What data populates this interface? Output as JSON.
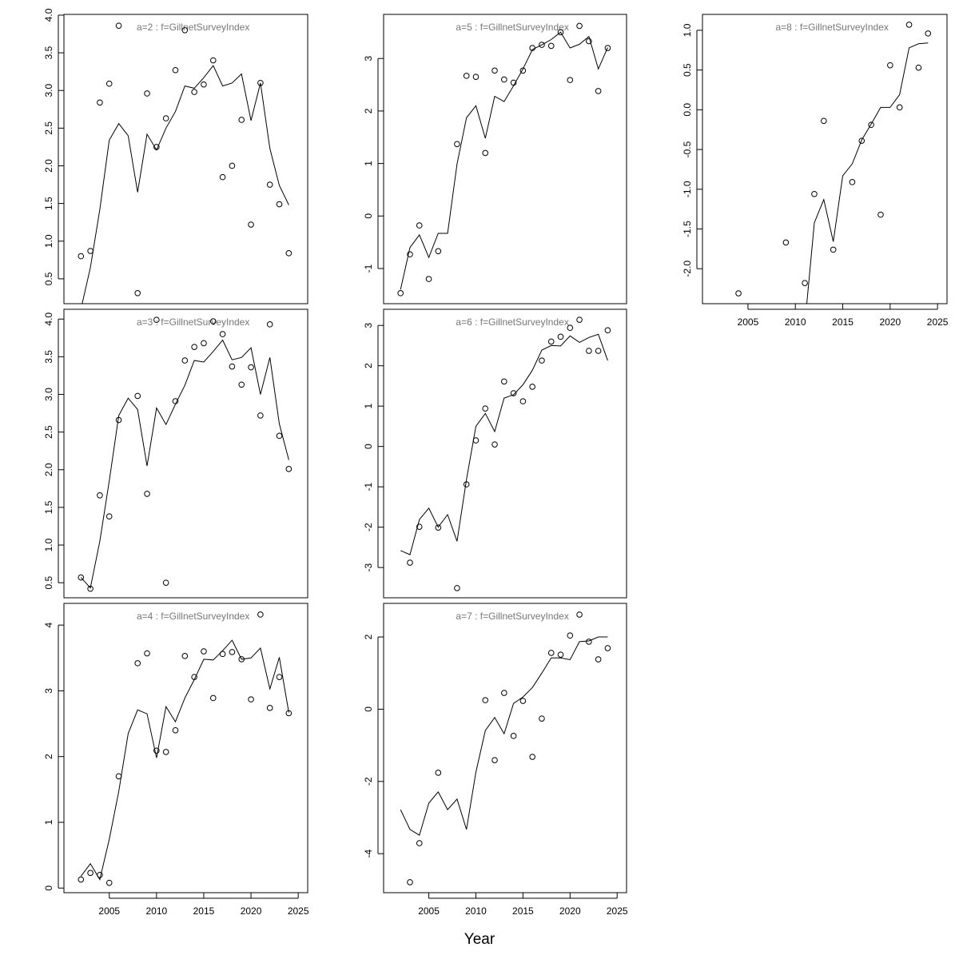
{
  "chart_data": {
    "type": "scatter+line",
    "xlabel": "Year",
    "grid": false,
    "x": [
      2002,
      2003,
      2004,
      2005,
      2006,
      2007,
      2008,
      2009,
      2010,
      2011,
      2012,
      2013,
      2014,
      2015,
      2016,
      2017,
      2018,
      2019,
      2020,
      2021,
      2022,
      2023,
      2024
    ],
    "xticks": [
      2005,
      2010,
      2015,
      2020,
      2025
    ],
    "xlim": [
      2000.2,
      2026.0
    ],
    "panels": [
      {
        "title": "a=2  :  f=GillnetSurveyIndex",
        "ylim": [
          0.17,
          4.01
        ],
        "yticks": [
          "0.5",
          "1.0",
          "1.5",
          "2.0",
          "2.5",
          "3.0",
          "3.5",
          "4.0"
        ],
        "show_xaxis": false,
        "observed": [
          0.8,
          0.87,
          2.84,
          3.09,
          3.86,
          null,
          0.31,
          2.96,
          2.25,
          2.63,
          3.27,
          3.8,
          2.98,
          3.08,
          3.4,
          1.85,
          2.0,
          2.61,
          1.22,
          3.1,
          1.75,
          1.49,
          0.84
        ],
        "fitted": [
          0.1,
          0.65,
          1.42,
          2.34,
          2.56,
          2.4,
          1.65,
          2.42,
          2.21,
          2.5,
          2.72,
          3.06,
          3.03,
          3.17,
          3.33,
          3.06,
          3.1,
          3.22,
          2.6,
          3.1,
          2.23,
          1.74,
          1.48
        ]
      },
      {
        "title": "a=3  :  f=GillnetSurveyIndex",
        "ylim": [
          0.3,
          4.13
        ],
        "yticks": [
          "0.5",
          "1.0",
          "1.5",
          "2.0",
          "2.5",
          "3.0",
          "3.5",
          "4.0"
        ],
        "show_xaxis": false,
        "observed": [
          0.57,
          0.42,
          1.66,
          1.38,
          2.66,
          null,
          2.98,
          1.68,
          3.99,
          0.5,
          2.91,
          3.45,
          3.63,
          3.68,
          3.97,
          3.8,
          3.37,
          3.13,
          3.36,
          2.72,
          3.93,
          2.45,
          2.01
        ],
        "fitted": [
          0.57,
          0.43,
          1.05,
          1.85,
          2.72,
          2.95,
          2.8,
          2.05,
          2.82,
          2.6,
          2.87,
          3.12,
          3.45,
          3.43,
          3.57,
          3.72,
          3.46,
          3.49,
          3.62,
          3.0,
          3.49,
          2.61,
          2.13
        ]
      },
      {
        "title": "a=4  :  f=GillnetSurveyIndex",
        "ylim": [
          -0.07,
          4.33
        ],
        "yticks": [
          "0",
          "1",
          "2",
          "3",
          "4"
        ],
        "show_xaxis": true,
        "observed": [
          0.13,
          0.23,
          0.2,
          0.08,
          1.7,
          null,
          3.42,
          3.57,
          2.09,
          2.07,
          2.4,
          3.53,
          3.21,
          3.6,
          2.89,
          3.56,
          3.59,
          3.48,
          2.87,
          4.16,
          2.74,
          3.21,
          2.66
        ],
        "fitted": [
          0.18,
          0.37,
          0.13,
          0.74,
          1.47,
          2.35,
          2.71,
          2.65,
          1.98,
          2.76,
          2.53,
          2.89,
          3.17,
          3.48,
          3.47,
          3.61,
          3.77,
          3.48,
          3.5,
          3.65,
          3.03,
          3.51,
          2.67
        ]
      },
      {
        "title": "a=5  :  f=GillnetSurveyIndex",
        "ylim": [
          -1.67,
          3.84
        ],
        "yticks": [
          "-1",
          "0",
          "1",
          "2",
          "3"
        ],
        "show_xaxis": false,
        "observed": [
          -1.47,
          -0.73,
          -0.18,
          -1.2,
          -0.67,
          null,
          1.37,
          2.67,
          2.65,
          1.2,
          2.77,
          2.6,
          2.54,
          2.77,
          3.2,
          3.26,
          3.24,
          3.5,
          2.59,
          3.62,
          3.33,
          2.38,
          3.2
        ],
        "fitted": [
          -1.4,
          -0.6,
          -0.36,
          -0.79,
          -0.33,
          -0.33,
          0.99,
          1.87,
          2.1,
          1.48,
          2.28,
          2.18,
          2.48,
          2.8,
          3.17,
          3.26,
          3.36,
          3.5,
          3.2,
          3.27,
          3.42,
          2.8,
          3.21
        ]
      },
      {
        "title": "a=6  :  f=GillnetSurveyIndex",
        "ylim": [
          -3.75,
          3.4
        ],
        "yticks": [
          "-3",
          "-2",
          "-1",
          "0",
          "1",
          "2",
          "3"
        ],
        "show_xaxis": false,
        "observed": [
          null,
          -2.88,
          -1.99,
          null,
          -2.01,
          null,
          -3.51,
          -0.94,
          0.15,
          0.94,
          0.05,
          1.61,
          1.32,
          1.12,
          1.48,
          2.13,
          2.6,
          2.72,
          2.94,
          3.14,
          2.37,
          2.37,
          2.88
        ],
        "fitted": [
          -2.58,
          -2.68,
          -1.81,
          -1.53,
          -2.0,
          -1.69,
          -2.35,
          -0.82,
          0.5,
          0.82,
          0.37,
          1.2,
          1.28,
          1.53,
          1.89,
          2.39,
          2.5,
          2.49,
          2.74,
          2.58,
          2.7,
          2.78,
          2.13
        ]
      },
      {
        "title": "a=7  :  f=GillnetSurveyIndex",
        "ylim": [
          -5.08,
          2.93
        ],
        "yticks": [
          "-4",
          "-2",
          "0",
          "2"
        ],
        "show_xaxis": true,
        "observed": [
          null,
          -4.79,
          -3.71,
          null,
          -1.76,
          null,
          null,
          null,
          null,
          0.25,
          -1.41,
          0.45,
          -0.74,
          0.23,
          -1.32,
          -0.26,
          1.56,
          1.51,
          2.04,
          2.62,
          1.87,
          1.38,
          1.69
        ],
        "fitted": [
          -2.78,
          -3.33,
          -3.49,
          -2.6,
          -2.29,
          -2.78,
          -2.49,
          -3.33,
          -1.74,
          -0.59,
          -0.23,
          -0.68,
          0.16,
          0.34,
          0.6,
          1.0,
          1.42,
          1.42,
          1.37,
          1.87,
          1.89,
          2.0,
          2.0
        ]
      },
      {
        "title": "a=8  :  f=GillnetSurveyIndex",
        "ylim": [
          -2.44,
          1.2
        ],
        "yticks": [
          "-2.0",
          "-1.5",
          "-1.0",
          "-0.5",
          "0.0",
          "0.5",
          "1.0"
        ],
        "show_xaxis": true,
        "observed": [
          null,
          null,
          -2.31,
          null,
          null,
          null,
          null,
          -1.67,
          null,
          -2.18,
          -1.06,
          -0.14,
          -1.76,
          null,
          -0.91,
          -0.39,
          -0.19,
          -1.32,
          0.56,
          0.03,
          1.07,
          0.53,
          0.96
        ],
        "fitted": [
          null,
          null,
          null,
          null,
          null,
          null,
          null,
          null,
          null,
          -2.7,
          -1.42,
          -1.13,
          -1.66,
          -0.83,
          -0.68,
          -0.38,
          -0.18,
          0.03,
          0.03,
          0.19,
          0.78,
          0.83,
          0.84
        ]
      }
    ]
  }
}
